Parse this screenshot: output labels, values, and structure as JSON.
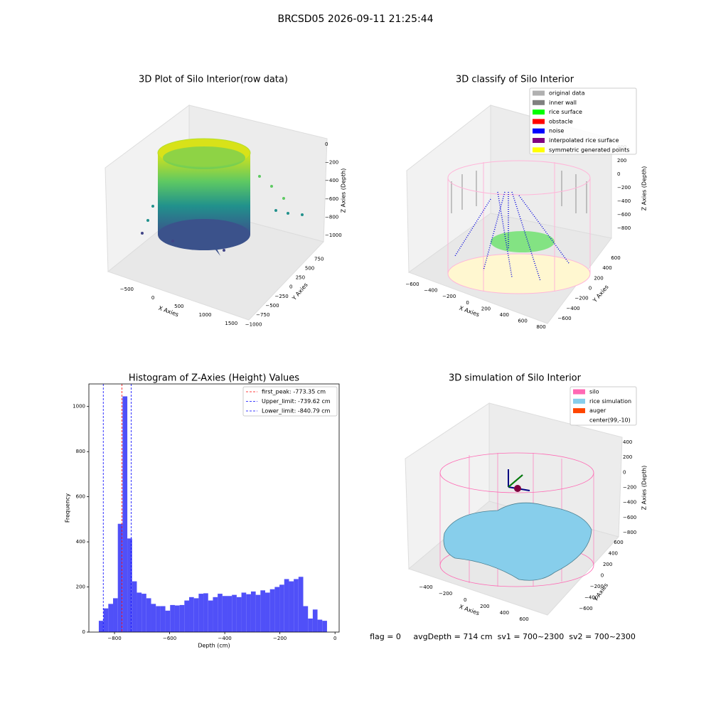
{
  "title": "BRCSD05 2026-09-11 21:25:44",
  "footer": "flag = 0     avgDepth = 714 cm  sv1 = 700~2300  sv2 = 700~2300",
  "chart_data": [
    {
      "type": "scatter3d",
      "title": "3D Plot of Silo Interior(row data)",
      "xlabel": "X Axies",
      "ylabel": "Y Axies",
      "zlabel": "Z Axies (Depth)",
      "xlim": [
        -750,
        1700
      ],
      "xticks": [
        {
          "value": -500,
          "label": "−500"
        },
        0,
        500,
        1000,
        1500
      ],
      "ylim": [
        -1050,
        850
      ],
      "yticks": [
        {
          "value": -1000,
          "label": "−1000"
        },
        {
          "value": -750,
          "label": "−750"
        },
        {
          "value": -500,
          "label": "−500"
        },
        {
          "value": -250,
          "label": "−250"
        },
        0,
        250,
        500,
        750
      ],
      "zlim": [
        -1100,
        100
      ],
      "zticks": [
        0,
        {
          "value": -200,
          "label": "−200"
        },
        {
          "value": -400,
          "label": "−400"
        },
        {
          "value": -600,
          "label": "−600"
        },
        {
          "value": -800,
          "label": "−800"
        },
        {
          "value": -1000,
          "label": "−1000"
        }
      ]
    },
    {
      "type": "scatter3d",
      "title": "3D classify of Silo Interior",
      "xlabel": "X Axies",
      "ylabel": "Y Axies",
      "zlabel": "Z Axies (Depth)",
      "xlim": [
        -650,
        850
      ],
      "xticks": [
        {
          "value": -600,
          "label": "−600"
        },
        {
          "value": -400,
          "label": "−400"
        },
        {
          "value": -200,
          "label": "−200"
        },
        0,
        200,
        400,
        600,
        800
      ],
      "ylim": [
        -700,
        700
      ],
      "yticks": [
        {
          "value": -600,
          "label": "−600"
        },
        {
          "value": -400,
          "label": "−400"
        },
        {
          "value": -200,
          "label": "−200"
        },
        0,
        200,
        400,
        600
      ],
      "zlim": [
        -900,
        450
      ],
      "zticks": [
        400,
        200,
        0,
        {
          "value": -200,
          "label": "−200"
        },
        {
          "value": -400,
          "label": "−400"
        },
        {
          "value": -600,
          "label": "−600"
        },
        {
          "value": -800,
          "label": "−800"
        }
      ],
      "legend_entries": [
        {
          "name": "original data",
          "color": "#b0b0b0"
        },
        {
          "name": "inner wall",
          "color": "#808080"
        },
        {
          "name": "rice surface",
          "color": "#00ff00"
        },
        {
          "name": "obstacle",
          "color": "#ff0000"
        },
        {
          "name": "noise",
          "color": "#0000ff"
        },
        {
          "name": "interpolated rice surface",
          "color": "#800080"
        },
        {
          "name": "symmetric generated points",
          "color": "#ffff00"
        }
      ],
      "legend": "upper right"
    },
    {
      "type": "histogram",
      "title": "Histogram of Z-Axies (Height) Values",
      "xlabel": "Depth (cm)",
      "ylabel": "Frequency",
      "color": "#5050f8",
      "bins": [
        -857,
        -839.75,
        -822.5,
        -805.25,
        -788,
        -770.75,
        -753.5,
        -736.25,
        -719,
        -701.75,
        -684.5,
        -667.25,
        -650,
        -632.75,
        -615.5,
        -598.25,
        -581,
        -563.75,
        -546.5,
        -529.25,
        -512,
        -494.75,
        -477.5,
        -460.25,
        -443,
        -425.75,
        -408.5,
        -391.25,
        -374,
        -356.75,
        -339.5,
        -322.25,
        -305,
        -287.75,
        -270.5,
        -253.25,
        -236,
        -218.75,
        -201.5,
        -184.25,
        -167,
        -149.75,
        -132.5,
        -115.25,
        -98,
        -80.75,
        -63.5,
        -46.25,
        -29
      ],
      "counts": [
        50,
        105,
        125,
        150,
        480,
        1045,
        415,
        225,
        175,
        170,
        150,
        125,
        115,
        115,
        95,
        120,
        118,
        120,
        140,
        155,
        150,
        170,
        172,
        140,
        155,
        170,
        160,
        160,
        165,
        155,
        175,
        168,
        180,
        165,
        185,
        175,
        190,
        200,
        210,
        235,
        225,
        235,
        245,
        115,
        60,
        100,
        55,
        50
      ],
      "lines": [
        {
          "name": "first_peak: -773.35 cm",
          "value": -773.35,
          "color": "#ff0000"
        },
        {
          "name": "Upper_limit: -739.62 cm",
          "value": -739.62,
          "color": "#0000ff"
        },
        {
          "name": "Lower_limit: -840.79 cm",
          "value": -840.79,
          "color": "#0000ff"
        }
      ],
      "legend": "upper right",
      "xlim": [
        -893,
        15
      ],
      "xticks": [
        {
          "value": -800,
          "label": "−800"
        },
        {
          "value": -600,
          "label": "−600"
        },
        {
          "value": -400,
          "label": "−400"
        },
        {
          "value": -200,
          "label": "−200"
        },
        0
      ],
      "ylim": [
        0,
        1100
      ],
      "yticks": [
        0,
        200,
        400,
        600,
        800,
        1000
      ]
    },
    {
      "type": "surface3d",
      "title": "3D simulation of Silo Interior",
      "xlabel": "X Axies",
      "ylabel": "Y Axies",
      "zlabel": "Z Axies (Depth)",
      "xlim": [
        -500,
        750
      ],
      "xticks": [
        {
          "value": -400,
          "label": "−400"
        },
        {
          "value": -200,
          "label": "−200"
        },
        0,
        200,
        400,
        600
      ],
      "ylim": [
        -700,
        700
      ],
      "yticks": [
        {
          "value": -600,
          "label": "−600"
        },
        {
          "value": -400,
          "label": "−400"
        },
        {
          "value": -200,
          "label": "−200"
        },
        0,
        200,
        400,
        600
      ],
      "zlim": [
        -950,
        500
      ],
      "zticks": [
        400,
        200,
        0,
        {
          "value": -200,
          "label": "−200"
        },
        {
          "value": -400,
          "label": "−400"
        },
        {
          "value": -600,
          "label": "−600"
        },
        {
          "value": -800,
          "label": "−800"
        }
      ],
      "legend_entries": [
        {
          "name": "silo",
          "color": "#ff69b4"
        },
        {
          "name": "rice simulation",
          "color": "#87ceeb"
        },
        {
          "name": "auger",
          "color": "#ff4500"
        },
        {
          "name": "center(99,-10)",
          "color": "#ffffff"
        }
      ],
      "legend": "upper right"
    }
  ]
}
